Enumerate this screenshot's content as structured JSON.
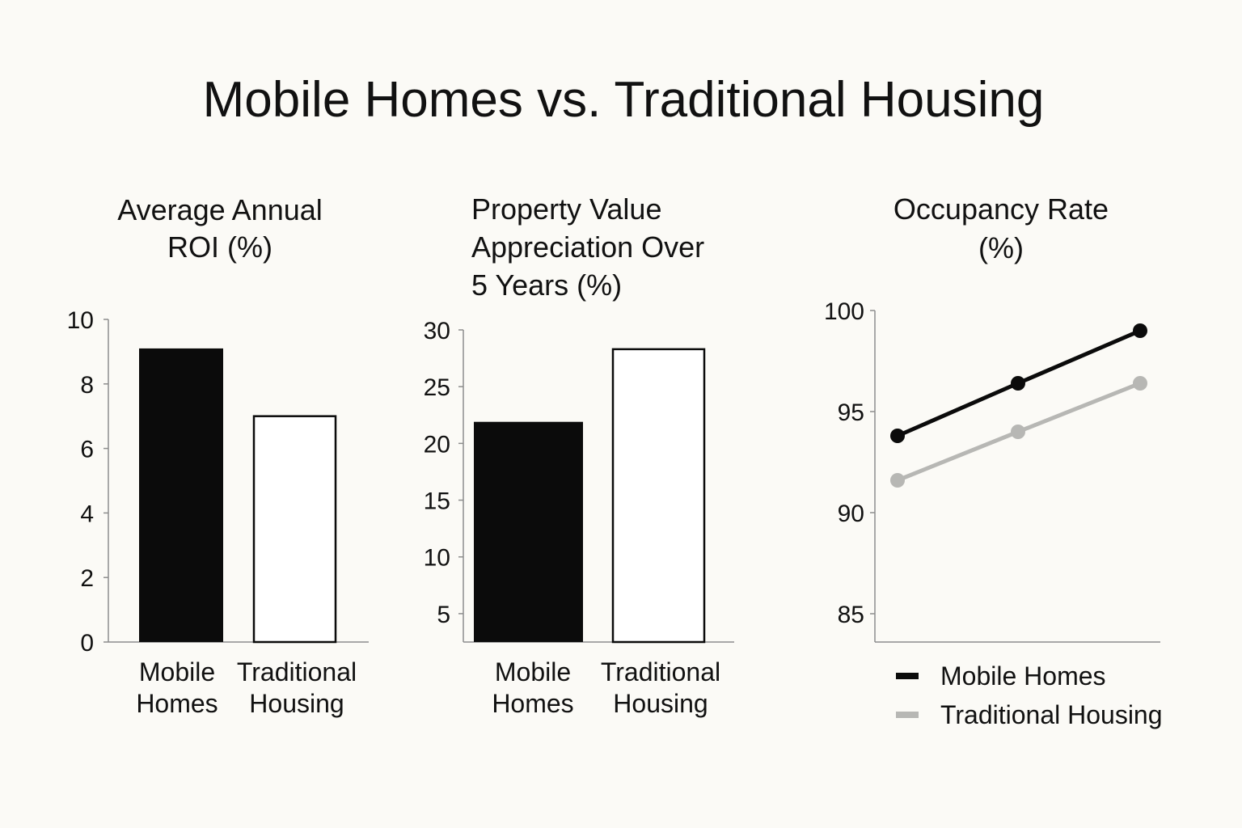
{
  "title": "Mobile Homes vs. Traditional Housing",
  "colors": {
    "background": "#fbfaf6",
    "mobile_homes": "#0b0b0b",
    "traditional_housing_line": "#b7b7b4",
    "traditional_housing_bar_fill": "#ffffff",
    "axis": "#8d8d8d"
  },
  "chart_data": [
    {
      "type": "bar",
      "title_lines": [
        "Average Annual",
        "ROI (%)"
      ],
      "categories": [
        [
          "Mobile",
          "Homes"
        ],
        [
          "Traditional",
          "Housing"
        ]
      ],
      "values": [
        9.1,
        7.0
      ],
      "yticks": [
        0,
        2,
        4,
        6,
        8,
        10
      ],
      "ylim": [
        0,
        10
      ],
      "bar_styles": [
        "filled",
        "outline"
      ]
    },
    {
      "type": "bar",
      "title_lines": [
        "Property Value",
        "Appreciation Over",
        "5 Years (%)"
      ],
      "categories": [
        [
          "Mobile",
          "Homes"
        ],
        [
          "Traditional",
          "Housing"
        ]
      ],
      "values": [
        21.9,
        28.3
      ],
      "yticks": [
        5,
        10,
        15,
        20,
        25,
        30
      ],
      "ylim": [
        2.5,
        30
      ],
      "bar_styles": [
        "filled",
        "outline"
      ]
    },
    {
      "type": "line",
      "title_lines": [
        "Occupancy Rate",
        "(%)"
      ],
      "x": [
        1,
        2,
        3
      ],
      "yticks": [
        85,
        90,
        95,
        100
      ],
      "ylim": [
        83.6,
        100
      ],
      "series": [
        {
          "name": "Mobile Homes",
          "values": [
            93.8,
            96.4,
            99.0
          ],
          "color": "#0b0b0b"
        },
        {
          "name": "Traditional Housing",
          "values": [
            91.6,
            94.0,
            96.4
          ],
          "color": "#b7b7b4"
        }
      ],
      "legend_position": "bottom"
    }
  ]
}
